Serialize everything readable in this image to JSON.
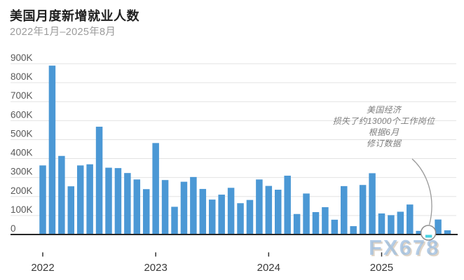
{
  "header": {
    "title": "美国月度新增就业人数",
    "subtitle": "2022年1月–2025年8月"
  },
  "watermark": "FX678",
  "annotation": {
    "lines": [
      "美国经济",
      "损失了约13000个工作岗位",
      "根据6月",
      "修订数据"
    ]
  },
  "chart_data": {
    "type": "bar",
    "title": "美国月度新增就业人数",
    "subtitle": "2022年1月–2025年8月",
    "values_unit": "thousands of jobs (K)",
    "categories": [
      "2022-01",
      "2022-02",
      "2022-03",
      "2022-04",
      "2022-05",
      "2022-06",
      "2022-07",
      "2022-08",
      "2022-09",
      "2022-10",
      "2022-11",
      "2022-12",
      "2023-01",
      "2023-02",
      "2023-03",
      "2023-04",
      "2023-05",
      "2023-06",
      "2023-07",
      "2023-08",
      "2023-09",
      "2023-10",
      "2023-11",
      "2023-12",
      "2024-01",
      "2024-02",
      "2024-03",
      "2024-04",
      "2024-05",
      "2024-06",
      "2024-07",
      "2024-08",
      "2024-09",
      "2024-10",
      "2024-11",
      "2024-12",
      "2025-01",
      "2025-02",
      "2025-03",
      "2025-04",
      "2025-05",
      "2025-06",
      "2025-07",
      "2025-08"
    ],
    "values": [
      364,
      890,
      414,
      254,
      364,
      370,
      568,
      352,
      350,
      324,
      290,
      239,
      482,
      287,
      146,
      278,
      303,
      240,
      184,
      210,
      246,
      165,
      182,
      290,
      256,
      236,
      310,
      108,
      216,
      118,
      144,
      78,
      255,
      44,
      261,
      323,
      111,
      102,
      120,
      158,
      19,
      -13,
      79,
      22
    ],
    "y_ticks": [
      "0",
      "100K",
      "200K",
      "300K",
      "400K",
      "500K",
      "600K",
      "700K",
      "800K",
      "900K"
    ],
    "x_ticks": [
      "2022",
      "2023",
      "2024",
      "2025"
    ],
    "ylim": [
      -20,
      900
    ],
    "grid": "horizontal",
    "legend": "none",
    "highlight": {
      "category": "2025-06",
      "value": -13,
      "style": "circled, cyan negative bar",
      "annotation_text": "美国经济 损失了约13000个工作岗位 根据6月 修订数据"
    },
    "colors": {
      "bar": "#4b98d5",
      "negative_bar": "#49d2e2",
      "gridline": "#e3e3e3",
      "axis": "#262626",
      "labels": "#595959",
      "annotation": "#7d7d7d",
      "watermark": "#9cbee0"
    }
  }
}
